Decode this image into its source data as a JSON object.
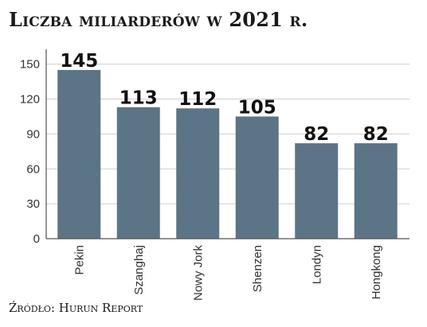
{
  "chart_data": {
    "type": "bar",
    "title": "Liczba miliarderów w 2021 r.",
    "source": "Źródło: Hurun Report",
    "categories": [
      "Pekin",
      "Szanghaj",
      "Nowy Jork",
      "Shenzen",
      "Londyn",
      "Hongkong"
    ],
    "values": [
      145,
      113,
      112,
      105,
      82,
      82
    ],
    "data_labels": [
      "145",
      "113",
      "112",
      "105",
      "82",
      "82"
    ],
    "yticks": [
      0,
      30,
      60,
      90,
      120,
      150
    ],
    "ytick_labels": [
      "0",
      "30",
      "60",
      "90",
      "120",
      "150"
    ],
    "ylim": [
      0,
      160
    ],
    "grid": true,
    "bar_color": "#5b7486",
    "grid_color": "#cfcfcf"
  }
}
